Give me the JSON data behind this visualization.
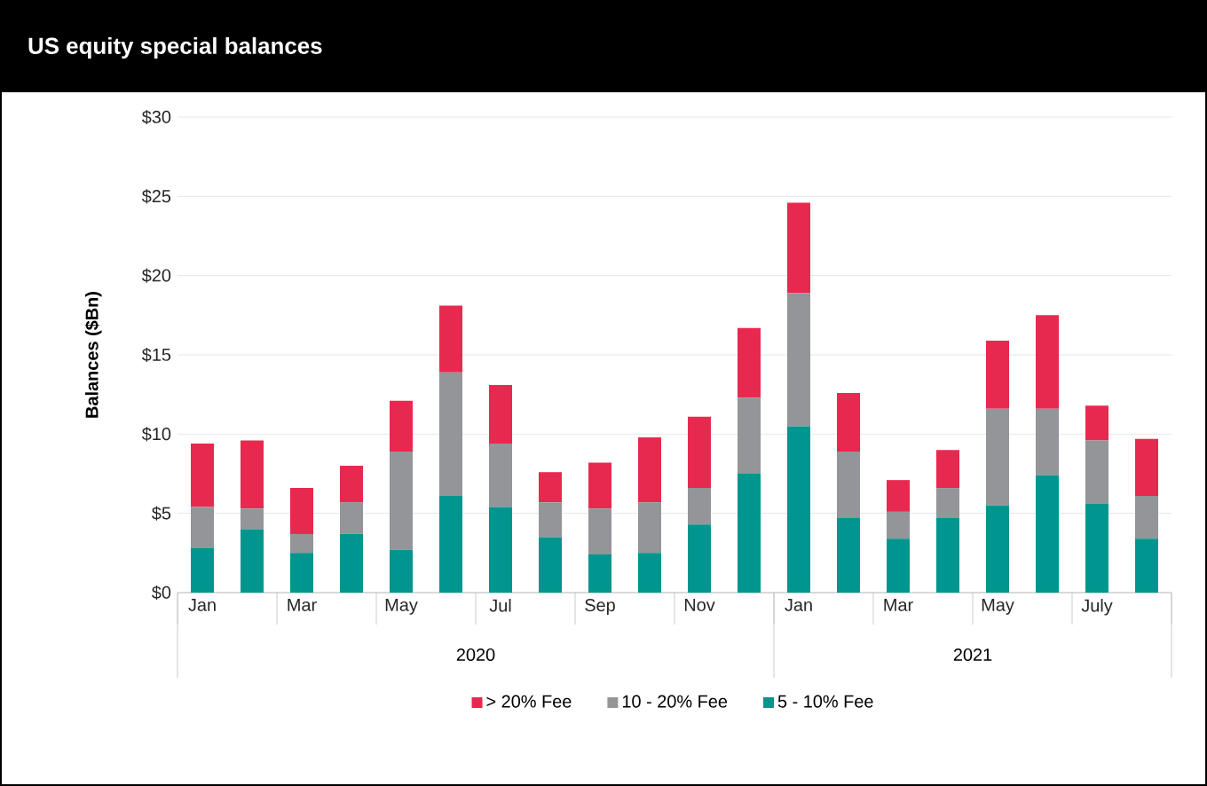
{
  "chart_data": {
    "type": "bar",
    "title": "US equity special balances",
    "ylabel": "Balances ($Bn)",
    "stacked": true,
    "categories": [
      "Jan",
      null,
      "Mar",
      null,
      "May",
      null,
      "Jul",
      null,
      "Sep",
      null,
      "Nov",
      null,
      "Jan",
      null,
      "Mar",
      null,
      "May",
      null,
      "July",
      null
    ],
    "series": [
      {
        "name": "5 - 10% Fee",
        "color": "#00968f",
        "values": [
          2.8,
          4.0,
          2.5,
          3.7,
          2.7,
          6.1,
          5.4,
          3.5,
          2.4,
          2.5,
          4.3,
          7.5,
          10.5,
          4.7,
          3.4,
          4.7,
          5.5,
          7.4,
          5.6,
          3.4
        ]
      },
      {
        "name": "10 - 20% Fee",
        "color": "#939598",
        "values": [
          2.6,
          1.3,
          1.2,
          2.0,
          6.2,
          7.8,
          4.0,
          2.2,
          2.9,
          3.2,
          2.3,
          4.8,
          8.4,
          4.2,
          1.7,
          1.9,
          6.1,
          4.2,
          4.0,
          2.7
        ]
      },
      {
        "name": "> 20% Fee",
        "color": "#e8294f",
        "values": [
          4.0,
          4.3,
          2.9,
          2.3,
          3.2,
          4.2,
          3.7,
          1.9,
          2.9,
          4.1,
          4.5,
          4.4,
          5.7,
          3.7,
          2.0,
          2.4,
          4.3,
          5.9,
          2.2,
          3.6
        ]
      }
    ],
    "ylim": [
      0,
      30
    ],
    "yticks": [
      {
        "value": 0,
        "label": "$0"
      },
      {
        "value": 5,
        "label": "$5"
      },
      {
        "value": 10,
        "label": "$10"
      },
      {
        "value": 15,
        "label": "$15"
      },
      {
        "value": 20,
        "label": "$20"
      },
      {
        "value": 25,
        "label": "$25"
      },
      {
        "value": 30,
        "label": "$30"
      }
    ],
    "grid": "y",
    "legend": "bottom",
    "annotations": [
      "2020",
      "2021"
    ]
  }
}
